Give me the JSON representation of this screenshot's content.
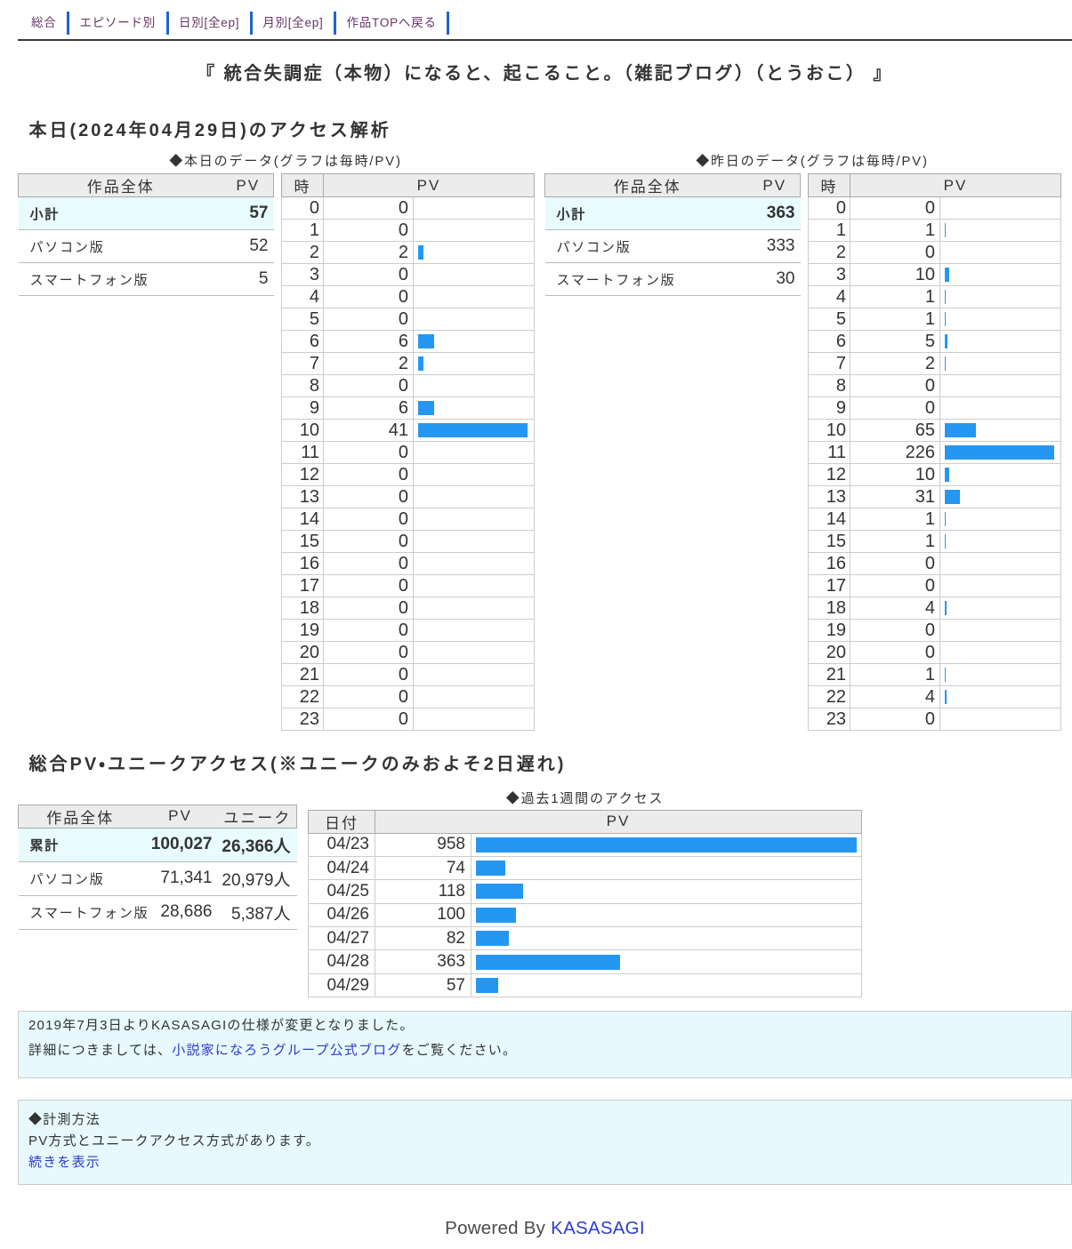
{
  "colors": {
    "bar": "#2497f3",
    "nav_link_visited": "#663366",
    "nav_separator": "#2263cc",
    "link_blue": "#2b3ccc",
    "highlight_row_bg": "#e8fbff",
    "table_header_bg": "#ececec",
    "notice_bg": "#e7f9fc"
  },
  "nav": {
    "items": [
      "総合",
      "エピソード別",
      "日別[全ep]",
      "月別[全ep]",
      "作品TOPへ戻る"
    ]
  },
  "work_title": "『 統合失調症（本物）になると、起こること。（雑記ブログ）（とうおこ） 』",
  "today_section": {
    "heading": "本日(2024年04月29日)のアクセス解析",
    "today": {
      "caption": "◆本日のデータ(グラフは毎時/PV)",
      "summary": {
        "headers": [
          "作品全体",
          "PV"
        ],
        "rows": [
          {
            "name": "小計",
            "pv": "57",
            "highlight": true
          },
          {
            "name": "パソコン版",
            "pv": "52",
            "highlight": false
          },
          {
            "name": "スマートフォン版",
            "pv": "5",
            "highlight": false
          }
        ]
      },
      "hourly": {
        "headers": [
          "時",
          "PV"
        ],
        "hours": [
          0,
          1,
          2,
          3,
          4,
          5,
          6,
          7,
          8,
          9,
          10,
          11,
          12,
          13,
          14,
          15,
          16,
          17,
          18,
          19,
          20,
          21,
          22,
          23
        ],
        "values": [
          0,
          0,
          2,
          0,
          0,
          0,
          6,
          2,
          0,
          6,
          41,
          0,
          0,
          0,
          0,
          0,
          0,
          0,
          0,
          0,
          0,
          0,
          0,
          0
        ]
      }
    },
    "yesterday": {
      "caption": "◆昨日のデータ(グラフは毎時/PV)",
      "summary": {
        "headers": [
          "作品全体",
          "PV"
        ],
        "rows": [
          {
            "name": "小計",
            "pv": "363",
            "highlight": true
          },
          {
            "name": "パソコン版",
            "pv": "333",
            "highlight": false
          },
          {
            "name": "スマートフォン版",
            "pv": "30",
            "highlight": false
          }
        ]
      },
      "hourly": {
        "headers": [
          "時",
          "PV"
        ],
        "hours": [
          0,
          1,
          2,
          3,
          4,
          5,
          6,
          7,
          8,
          9,
          10,
          11,
          12,
          13,
          14,
          15,
          16,
          17,
          18,
          19,
          20,
          21,
          22,
          23
        ],
        "values": [
          0,
          1,
          0,
          10,
          1,
          1,
          5,
          2,
          0,
          0,
          65,
          226,
          10,
          31,
          1,
          1,
          0,
          0,
          4,
          0,
          0,
          1,
          4,
          0
        ]
      }
    }
  },
  "total_section": {
    "heading": "総合PV・ユニークアクセス(※ユニークのみおよそ2日遅れ)",
    "summary": {
      "headers": [
        "作品全体",
        "PV",
        "ユニーク"
      ],
      "rows": [
        {
          "name": "累計",
          "pv": "100,027",
          "unique": "26,366人",
          "highlight": true
        },
        {
          "name": "パソコン版",
          "pv": "71,341",
          "unique": "20,979人",
          "highlight": false
        },
        {
          "name": "スマートフォン版",
          "pv": "28,686",
          "unique": "5,387人",
          "highlight": false
        }
      ]
    },
    "week": {
      "caption": "◆過去1週間のアクセス",
      "headers": [
        "日付",
        "PV"
      ],
      "dates": [
        "04/23",
        "04/24",
        "04/25",
        "04/26",
        "04/27",
        "04/28",
        "04/29"
      ],
      "values": [
        958,
        74,
        118,
        100,
        82,
        363,
        57
      ]
    }
  },
  "notices": {
    "first": {
      "line1": "2019年7月3日よりKASASAGIの仕様が変更となりました。",
      "line2_before": "詳細につきましては、",
      "line2_link": "小説家になろうグループ公式ブログ",
      "line2_after": "をご覧ください。"
    },
    "second": {
      "line1": "◆計測方法",
      "line2": "PV方式とユニークアクセス方式があります。",
      "link": "続きを表示"
    }
  },
  "footer": {
    "powered_by": "Powered By",
    "brand": "KASASAGI"
  },
  "chart_data": [
    {
      "type": "bar",
      "title": "◆本日のデータ(グラフは毎時/PV)",
      "categories": [
        0,
        1,
        2,
        3,
        4,
        5,
        6,
        7,
        8,
        9,
        10,
        11,
        12,
        13,
        14,
        15,
        16,
        17,
        18,
        19,
        20,
        21,
        22,
        23
      ],
      "values": [
        0,
        0,
        2,
        0,
        0,
        0,
        6,
        2,
        0,
        6,
        41,
        0,
        0,
        0,
        0,
        0,
        0,
        0,
        0,
        0,
        0,
        0,
        0,
        0
      ],
      "xlabel": "時",
      "ylabel": "PV",
      "orientation": "horizontal"
    },
    {
      "type": "bar",
      "title": "◆昨日のデータ(グラフは毎時/PV)",
      "categories": [
        0,
        1,
        2,
        3,
        4,
        5,
        6,
        7,
        8,
        9,
        10,
        11,
        12,
        13,
        14,
        15,
        16,
        17,
        18,
        19,
        20,
        21,
        22,
        23
      ],
      "values": [
        0,
        1,
        0,
        10,
        1,
        1,
        5,
        2,
        0,
        0,
        65,
        226,
        10,
        31,
        1,
        1,
        0,
        0,
        4,
        0,
        0,
        1,
        4,
        0
      ],
      "xlabel": "時",
      "ylabel": "PV",
      "orientation": "horizontal"
    },
    {
      "type": "bar",
      "title": "◆過去1週間のアクセス",
      "categories": [
        "04/23",
        "04/24",
        "04/25",
        "04/26",
        "04/27",
        "04/28",
        "04/29"
      ],
      "values": [
        958,
        74,
        118,
        100,
        82,
        363,
        57
      ],
      "xlabel": "日付",
      "ylabel": "PV",
      "orientation": "horizontal"
    }
  ]
}
